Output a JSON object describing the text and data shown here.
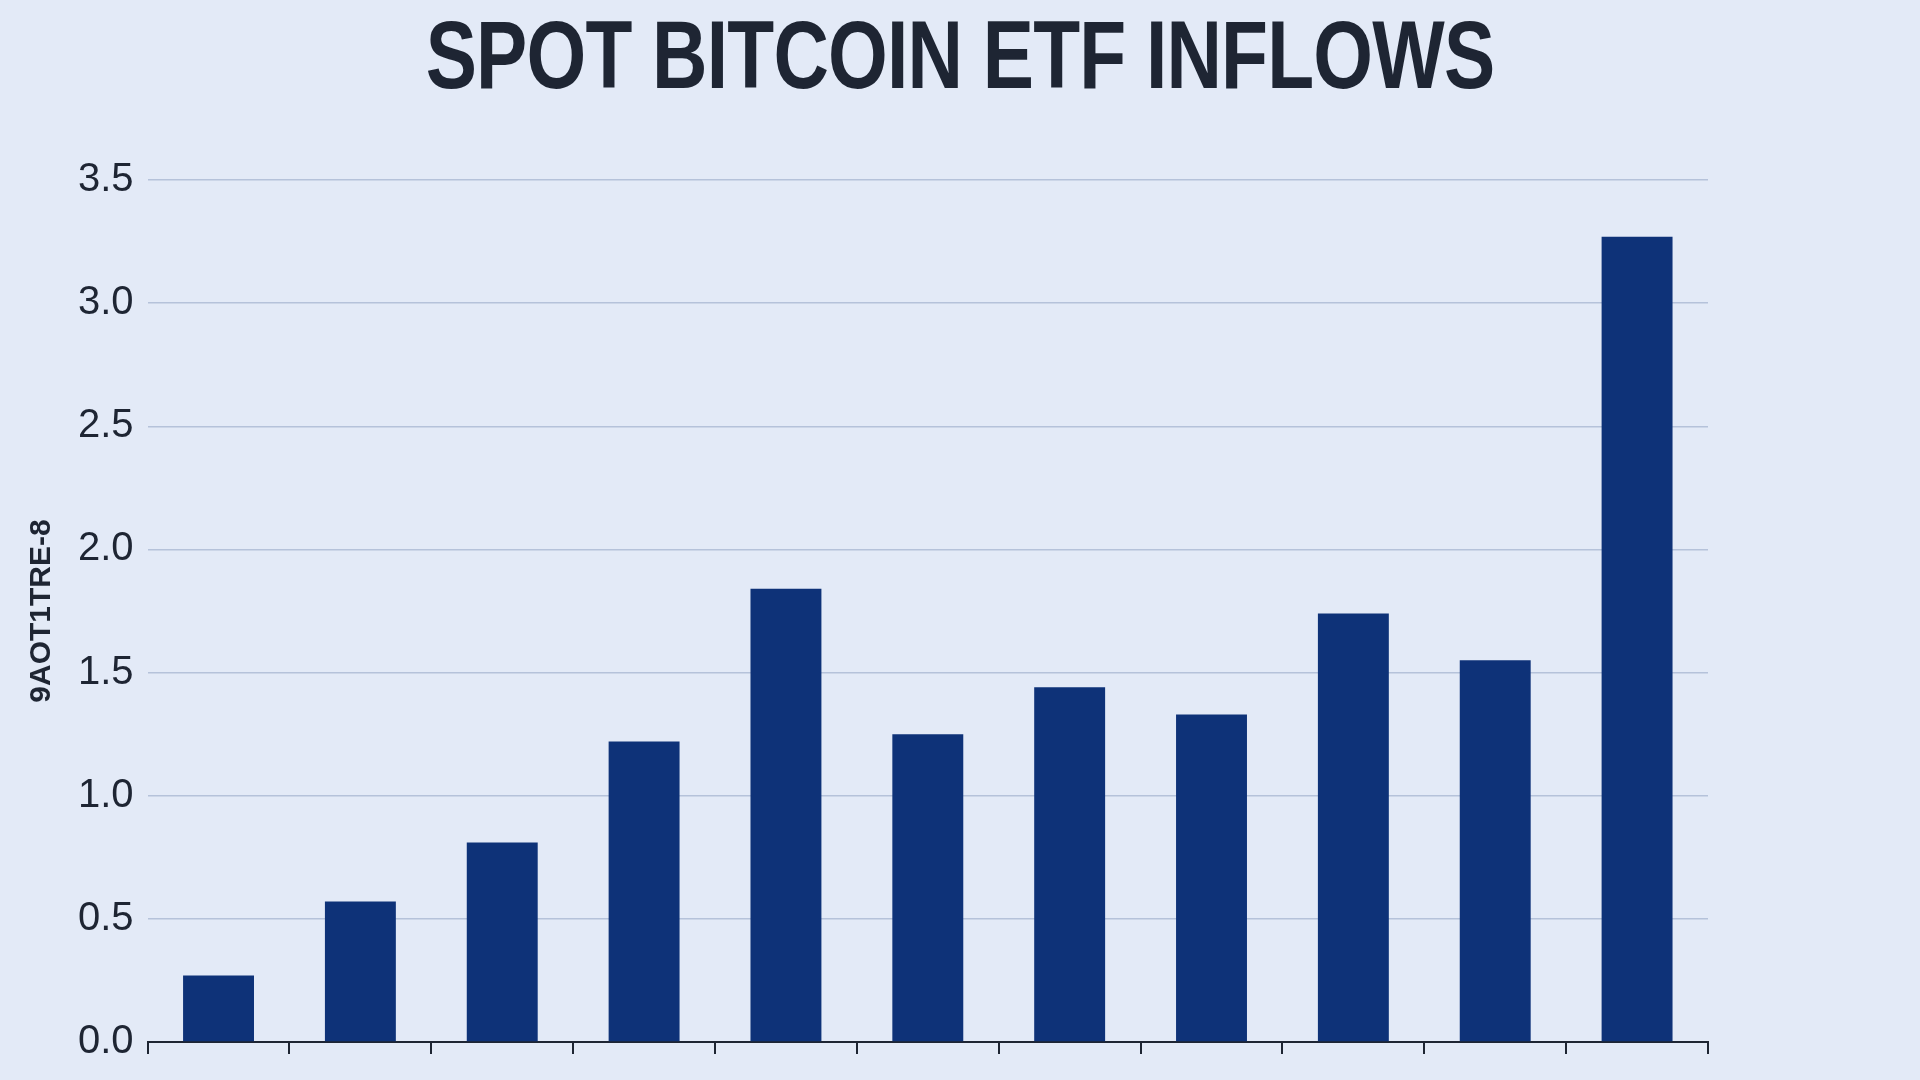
{
  "chart_data": {
    "type": "bar",
    "title": "SPOT BITCOIN ETF INFLOWS",
    "ylabel": "9AOT1TRE-8",
    "categories": [
      null,
      null,
      null,
      null,
      null,
      null,
      null,
      null,
      null,
      null,
      null
    ],
    "values": [
      0.27,
      0.57,
      0.81,
      1.22,
      1.84,
      1.25,
      1.44,
      1.33,
      1.74,
      1.55,
      3.27
    ],
    "color": "#0e3278",
    "ylim": [
      0,
      3.5
    ],
    "yticks": [
      {
        "value": 0,
        "label": "0.0"
      },
      0.5,
      {
        "value": 1,
        "label": "1.0"
      },
      1.5,
      {
        "value": 2,
        "label": "2.0"
      },
      2.5,
      {
        "value": 3,
        "label": "3.0"
      },
      3.5
    ],
    "grid": "y"
  }
}
